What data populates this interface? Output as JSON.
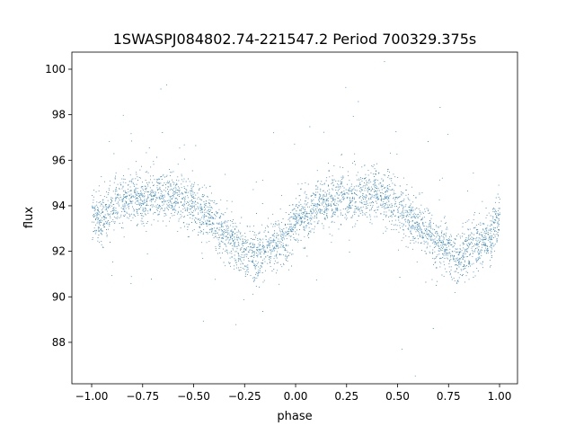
{
  "chart_data": {
    "type": "scatter",
    "title": "1SWASPJ084802.74-221547.2 Period 700329.375s",
    "xlabel": "phase",
    "ylabel": "flux",
    "xlim": [
      -1.097,
      1.088
    ],
    "ylim": [
      86.18,
      100.75
    ],
    "xticks": [
      -1.0,
      -0.75,
      -0.5,
      -0.25,
      0.0,
      0.25,
      0.5,
      0.75,
      1.0
    ],
    "xtick_labels": [
      "−1.00",
      "−0.75",
      "−0.50",
      "−0.25",
      "0.00",
      "0.25",
      "0.50",
      "0.75",
      "1.00"
    ],
    "yticks": [
      88,
      90,
      92,
      94,
      96,
      98,
      100
    ],
    "ytick_labels": [
      "88",
      "90",
      "92",
      "94",
      "96",
      "98",
      "100"
    ],
    "grid": false,
    "legend": "none",
    "marker_color": "#1f77b4",
    "phase_trend": {
      "phase": [
        0.0,
        0.03,
        0.06,
        0.1,
        0.15,
        0.2,
        0.25,
        0.3,
        0.35,
        0.4,
        0.45,
        0.5,
        0.55,
        0.6,
        0.65,
        0.7,
        0.75,
        0.8,
        0.85,
        0.88,
        0.92,
        0.96,
        1.0
      ],
      "flux": [
        93.6,
        93.6,
        93.4,
        94.0,
        94.2,
        94.3,
        94.3,
        94.4,
        94.5,
        94.5,
        94.3,
        94.0,
        93.6,
        93.2,
        92.8,
        92.3,
        92.0,
        91.8,
        92.0,
        92.2,
        92.4,
        92.6,
        93.6
      ]
    }
  }
}
